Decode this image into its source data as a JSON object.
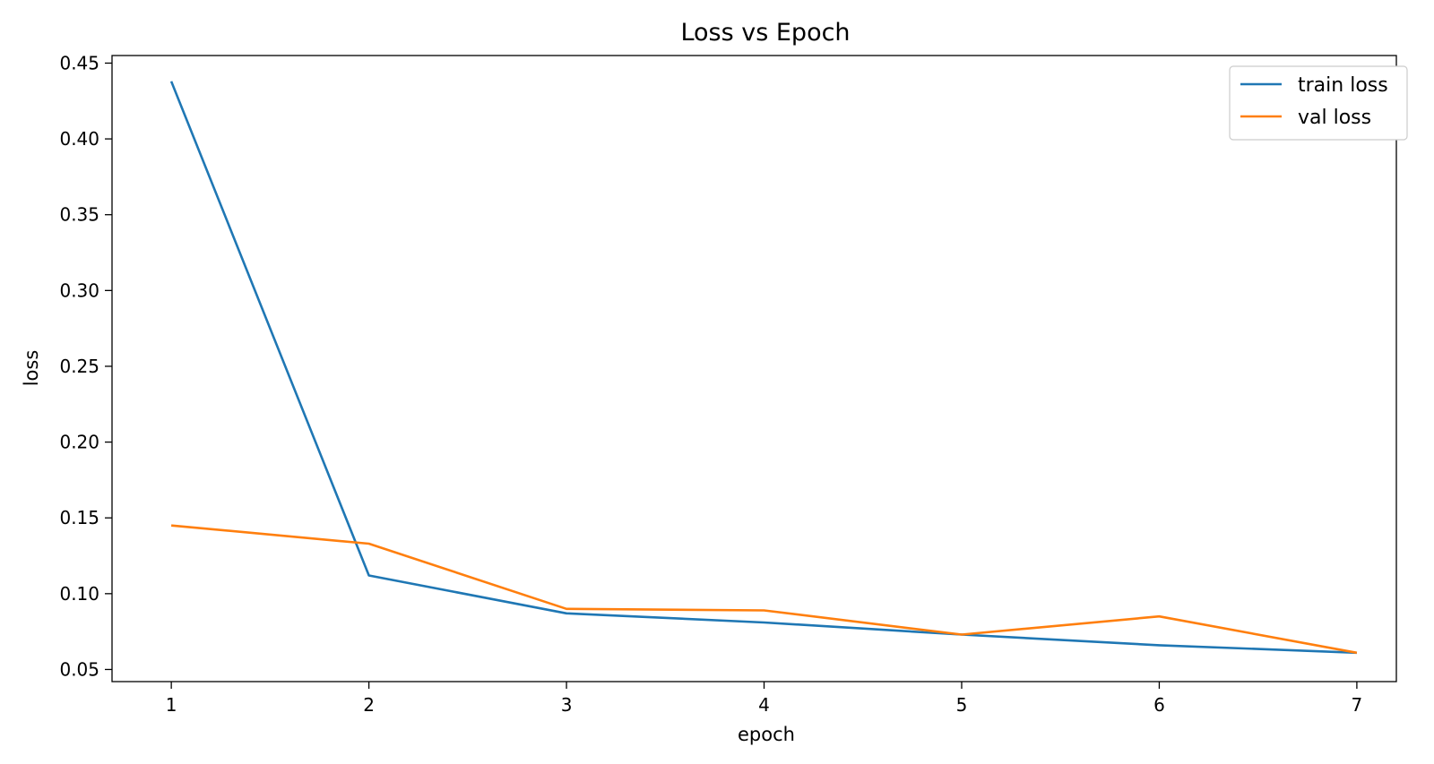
{
  "chart_data": {
    "type": "line",
    "title": "Loss vs Epoch",
    "xlabel": "epoch",
    "ylabel": "loss",
    "x": [
      1,
      2,
      3,
      4,
      5,
      6,
      7
    ],
    "xticks": [
      "1",
      "2",
      "3",
      "4",
      "5",
      "6",
      "7"
    ],
    "yticks": [
      "0.05",
      "0.10",
      "0.15",
      "0.20",
      "0.25",
      "0.30",
      "0.35",
      "0.40",
      "0.45"
    ],
    "xlim": [
      0.7,
      7.2
    ],
    "ylim": [
      0.042,
      0.455
    ],
    "grid": false,
    "legend_position": "top-right",
    "series": [
      {
        "name": "train loss",
        "color": "#1f77b4",
        "values": [
          0.438,
          0.112,
          0.087,
          0.081,
          0.073,
          0.066,
          0.061
        ]
      },
      {
        "name": "val loss",
        "color": "#ff7f0e",
        "values": [
          0.145,
          0.133,
          0.09,
          0.089,
          0.073,
          0.085,
          0.061
        ]
      }
    ]
  }
}
